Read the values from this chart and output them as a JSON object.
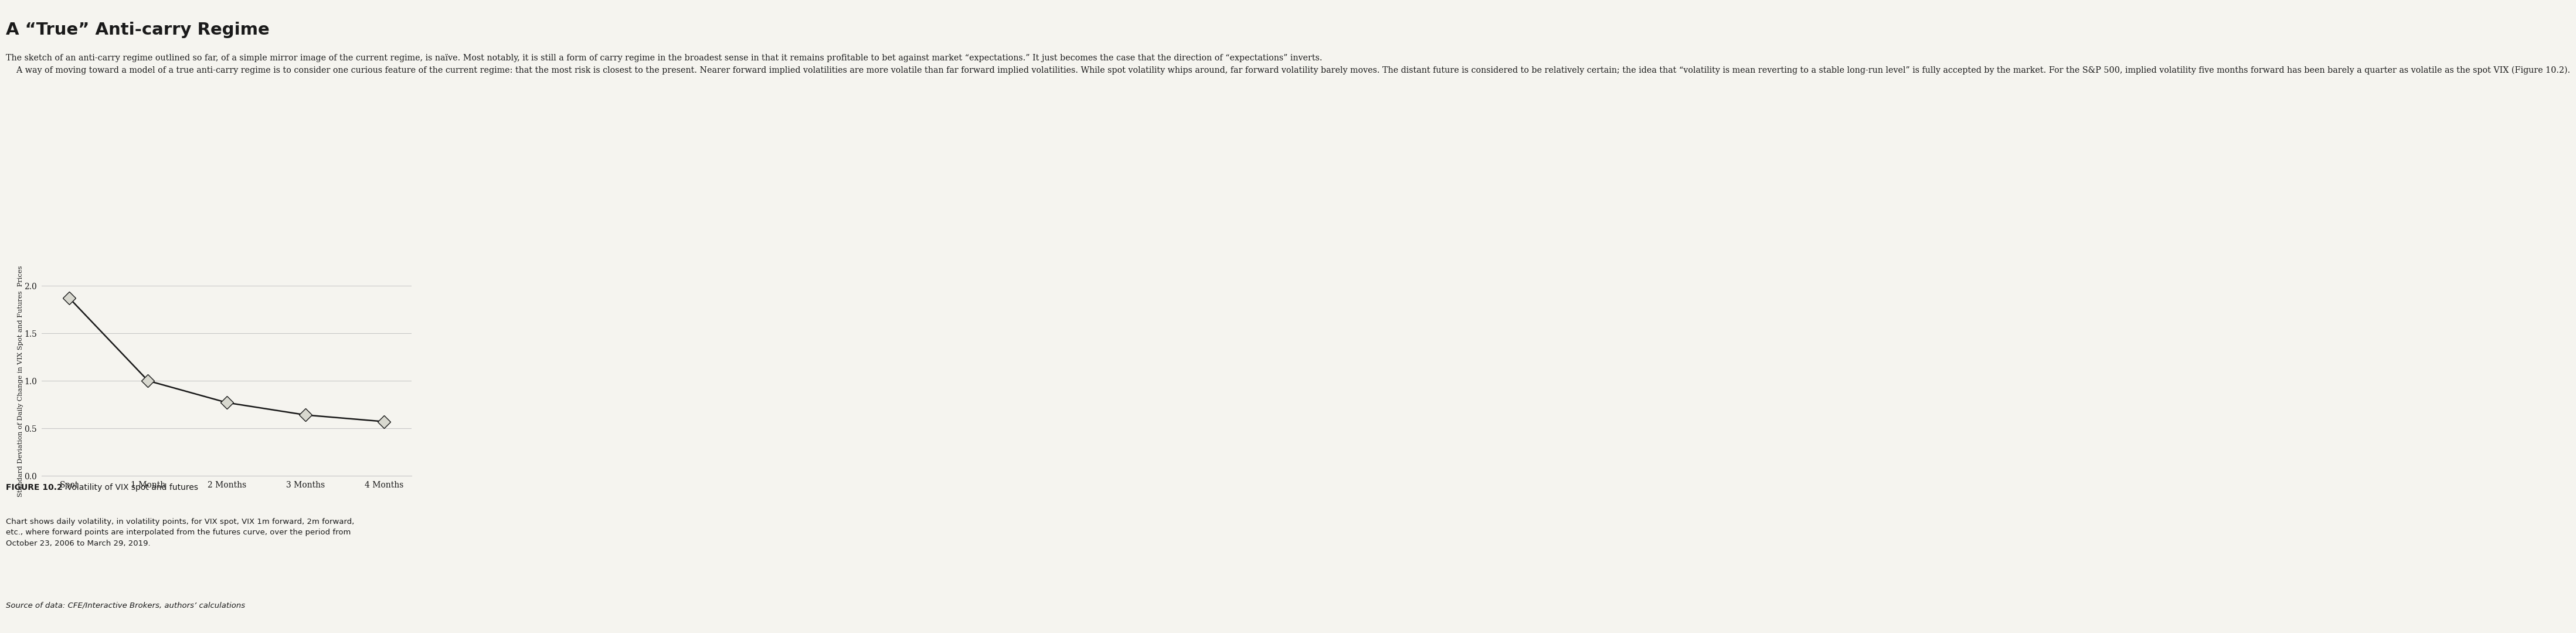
{
  "title": "A “True” Anti-carry Regime",
  "para1": "The sketch of an anti-carry regime outlined so far, of a simple mirror image of the current regime, is naïve. Most notably, it is still a form of carry regime in the broadest sense in that it remains profitable to bet against market “expectations.” It just becomes the case that the direction of “expectations” inverts.",
  "para2": "    A way of moving toward a model of a true anti-carry regime is to consider one curious feature of the current regime: that the most risk is closest to the present. Nearer forward implied volatilities are more volatile than far forward implied volatilities. While spot volatility whips around, far forward volatility barely moves. The distant future is considered to be relatively certain; the idea that “volatility is mean reverting to a stable long-run level” is fully accepted by the market. For the S&P 500, implied volatility five months forward has been barely a quarter as volatile as the spot VIX (Figure 10.2).",
  "x_labels": [
    "Spot",
    "1 Month",
    "2 Months",
    "3 Months",
    "4 Months"
  ],
  "x_values": [
    0,
    1,
    2,
    3,
    4
  ],
  "y_values": [
    1.87,
    1.0,
    0.77,
    0.64,
    0.57
  ],
  "ylabel": "Standard Deviation of Daily Change in VIX Spot and Futures  Prices",
  "ylim": [
    0.0,
    2.0
  ],
  "yticks": [
    0.0,
    0.5,
    1.0,
    1.5,
    2.0
  ],
  "ytick_labels": [
    "0.0",
    "0.5",
    "1.0",
    "1.5",
    "2.0"
  ],
  "figure_label": "FIGURE 10.2",
  "figure_title": "Volatility of VIX spot and futures",
  "caption_body": "Chart shows daily volatility, in volatility points, for VIX spot, VIX 1m forward, 2m forward,\netc., where forward points are interpolated from the futures curve, over the period from\nOctober 23, 2006 to March 29, 2019.",
  "caption_italic": "Source of data: CFE/Interactive Brokers, authors’ calculations",
  "background_color": "#f5f4ef",
  "line_color": "#1a1a1a",
  "marker_facecolor": "#d8d8cf",
  "marker_edgecolor": "#1a1a1a",
  "grid_color": "#c8c8c8",
  "text_color": "#1a1a1a"
}
